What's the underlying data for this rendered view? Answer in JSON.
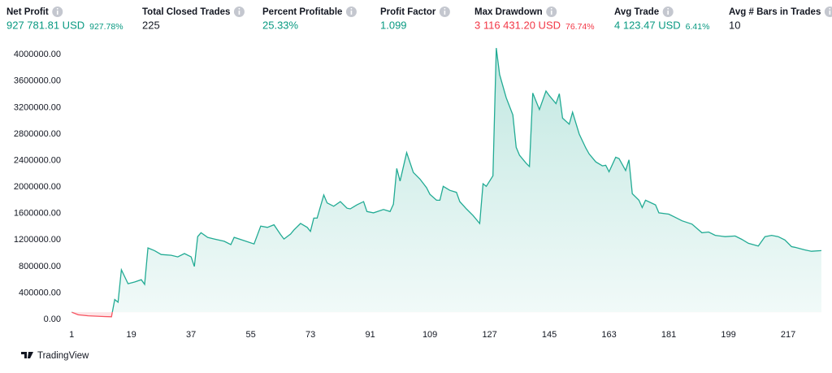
{
  "metrics": [
    {
      "label": "Net Profit",
      "value": "927 781.81 USD",
      "sub": "927.78%",
      "color": "#089981"
    },
    {
      "label": "Total Closed Trades",
      "value": "225",
      "color": "#131722"
    },
    {
      "label": "Percent Profitable",
      "value": "25.33%",
      "color": "#089981"
    },
    {
      "label": "Profit Factor",
      "value": "1.099",
      "color": "#089981"
    },
    {
      "label": "Max Drawdown",
      "value": "3 116 431.20 USD",
      "sub": "76.74%",
      "color": "#f23645"
    },
    {
      "label": "Avg Trade",
      "value": "4 123.47 USD",
      "sub": "6.41%",
      "color": "#089981"
    },
    {
      "label": "Avg # Bars in Trades",
      "value": "10",
      "color": "#131722"
    }
  ],
  "chart_data": {
    "type": "area",
    "x": [
      1,
      3,
      6,
      10,
      13,
      14,
      15,
      16,
      18,
      20,
      22,
      23,
      24,
      26,
      28,
      31,
      33,
      35,
      37,
      38,
      39,
      40,
      42,
      44,
      47,
      49,
      50,
      53,
      56,
      58,
      60,
      62,
      64,
      65,
      67,
      68,
      70,
      72,
      73,
      74,
      75,
      77,
      78,
      80,
      82,
      84,
      85,
      87,
      89,
      90,
      92,
      95,
      97,
      98,
      99,
      100,
      102,
      104,
      106,
      108,
      109,
      111,
      112,
      113,
      115,
      117,
      118,
      120,
      122,
      124,
      125,
      126,
      128,
      129,
      130,
      132,
      134,
      135,
      136,
      138,
      139,
      140,
      142,
      144,
      145,
      147,
      148,
      149,
      151,
      152,
      154,
      156,
      157,
      159,
      161,
      162,
      163,
      165,
      166,
      168,
      169,
      170,
      172,
      173,
      174,
      177,
      178,
      181,
      183,
      185,
      188,
      191,
      193,
      195,
      198,
      201,
      203,
      205,
      208,
      210,
      212,
      214,
      216,
      218,
      219,
      222,
      224,
      227
    ],
    "values": [
      110000,
      70000,
      55000,
      45000,
      40000,
      300000,
      260000,
      750000,
      540000,
      565000,
      600000,
      530000,
      1080000,
      1040000,
      980000,
      970000,
      945000,
      995000,
      945000,
      800000,
      1250000,
      1310000,
      1240000,
      1215000,
      1180000,
      1130000,
      1240000,
      1190000,
      1140000,
      1410000,
      1390000,
      1430000,
      1280000,
      1215000,
      1290000,
      1350000,
      1450000,
      1390000,
      1330000,
      1530000,
      1530000,
      1880000,
      1760000,
      1710000,
      1780000,
      1680000,
      1670000,
      1730000,
      1780000,
      1630000,
      1610000,
      1660000,
      1630000,
      1740000,
      2280000,
      2090000,
      2520000,
      2220000,
      2120000,
      1990000,
      1890000,
      1800000,
      1800000,
      2010000,
      1950000,
      1920000,
      1780000,
      1670000,
      1570000,
      1450000,
      2050000,
      2010000,
      2170000,
      4100000,
      3700000,
      3350000,
      3090000,
      2600000,
      2480000,
      2360000,
      2310000,
      3420000,
      3170000,
      3450000,
      3380000,
      3260000,
      3410000,
      3040000,
      2950000,
      3130000,
      2800000,
      2590000,
      2500000,
      2380000,
      2320000,
      2330000,
      2230000,
      2450000,
      2430000,
      2250000,
      2410000,
      1900000,
      1800000,
      1690000,
      1800000,
      1730000,
      1610000,
      1590000,
      1540000,
      1490000,
      1440000,
      1310000,
      1320000,
      1270000,
      1250000,
      1260000,
      1210000,
      1150000,
      1110000,
      1250000,
      1270000,
      1250000,
      1200000,
      1100000,
      1090000,
      1050000,
      1030000,
      1040000
    ],
    "color": "#22ab94",
    "negative_color": "#f7525f",
    "xlim": [
      -1,
      228
    ],
    "xticks": [
      1,
      19,
      37,
      55,
      73,
      91,
      109,
      127,
      145,
      163,
      181,
      199,
      217
    ],
    "ylim": [
      -85000,
      4150000
    ],
    "yticks": [
      {
        "value": 0,
        "label": "0.00"
      },
      {
        "value": 400000,
        "label": "400000.00"
      },
      {
        "value": 800000,
        "label": "800000.00"
      },
      {
        "value": 1200000,
        "label": "1200000.00"
      },
      {
        "value": 1600000,
        "label": "1600000.00"
      },
      {
        "value": 2000000,
        "label": "2000000.00"
      },
      {
        "value": 2400000,
        "label": "2400000.00"
      },
      {
        "value": 2800000,
        "label": "2800000.00"
      },
      {
        "value": 3200000,
        "label": "3200000.00"
      },
      {
        "value": 3600000,
        "label": "3600000.00"
      },
      {
        "value": 4000000,
        "label": "4000000.00"
      }
    ]
  },
  "footer": {
    "brand": "TradingView"
  }
}
